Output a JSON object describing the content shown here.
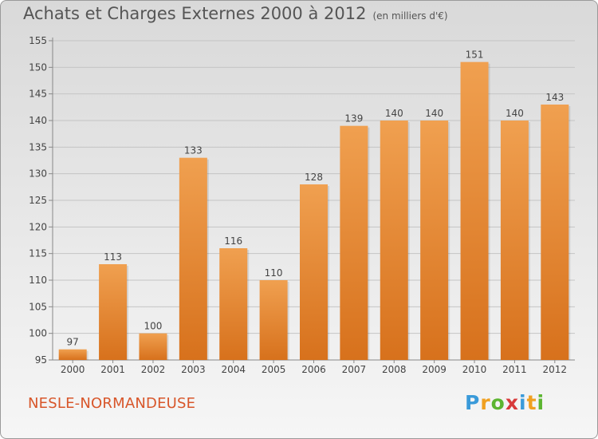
{
  "title": "Achats et Charges Externes 2000 à 2012",
  "subtitle": "(en milliers d'€)",
  "commune": "NESLE-NORMANDEUSE",
  "logo": {
    "text": "Proxiti",
    "letters": [
      "P",
      "r",
      "o",
      "x",
      "i",
      "t",
      "i"
    ],
    "colors": [
      "#3a9ad9",
      "#f0a020",
      "#5cb531",
      "#d83a3a",
      "#3a9ad9",
      "#f0a020",
      "#5cb531"
    ]
  },
  "colors": {
    "bar": "#f0a050",
    "bar_dark": "#d7711c",
    "title": "#555555",
    "commune": "#d8562a"
  },
  "chart_data": {
    "type": "bar",
    "title": "Achats et Charges Externes 2000 à 2012",
    "subtitle": "(en milliers d'€)",
    "categories": [
      "2000",
      "2001",
      "2002",
      "2003",
      "2004",
      "2005",
      "2006",
      "2007",
      "2008",
      "2009",
      "2010",
      "2011",
      "2012"
    ],
    "values": [
      97,
      113,
      100,
      133,
      116,
      110,
      128,
      139,
      140,
      140,
      151,
      140,
      143
    ],
    "ylim": [
      95,
      155
    ],
    "yticks": [
      95,
      100,
      105,
      110,
      115,
      120,
      125,
      130,
      135,
      140,
      145,
      150,
      155
    ],
    "xlabel": "",
    "ylabel": "",
    "grid": true
  }
}
